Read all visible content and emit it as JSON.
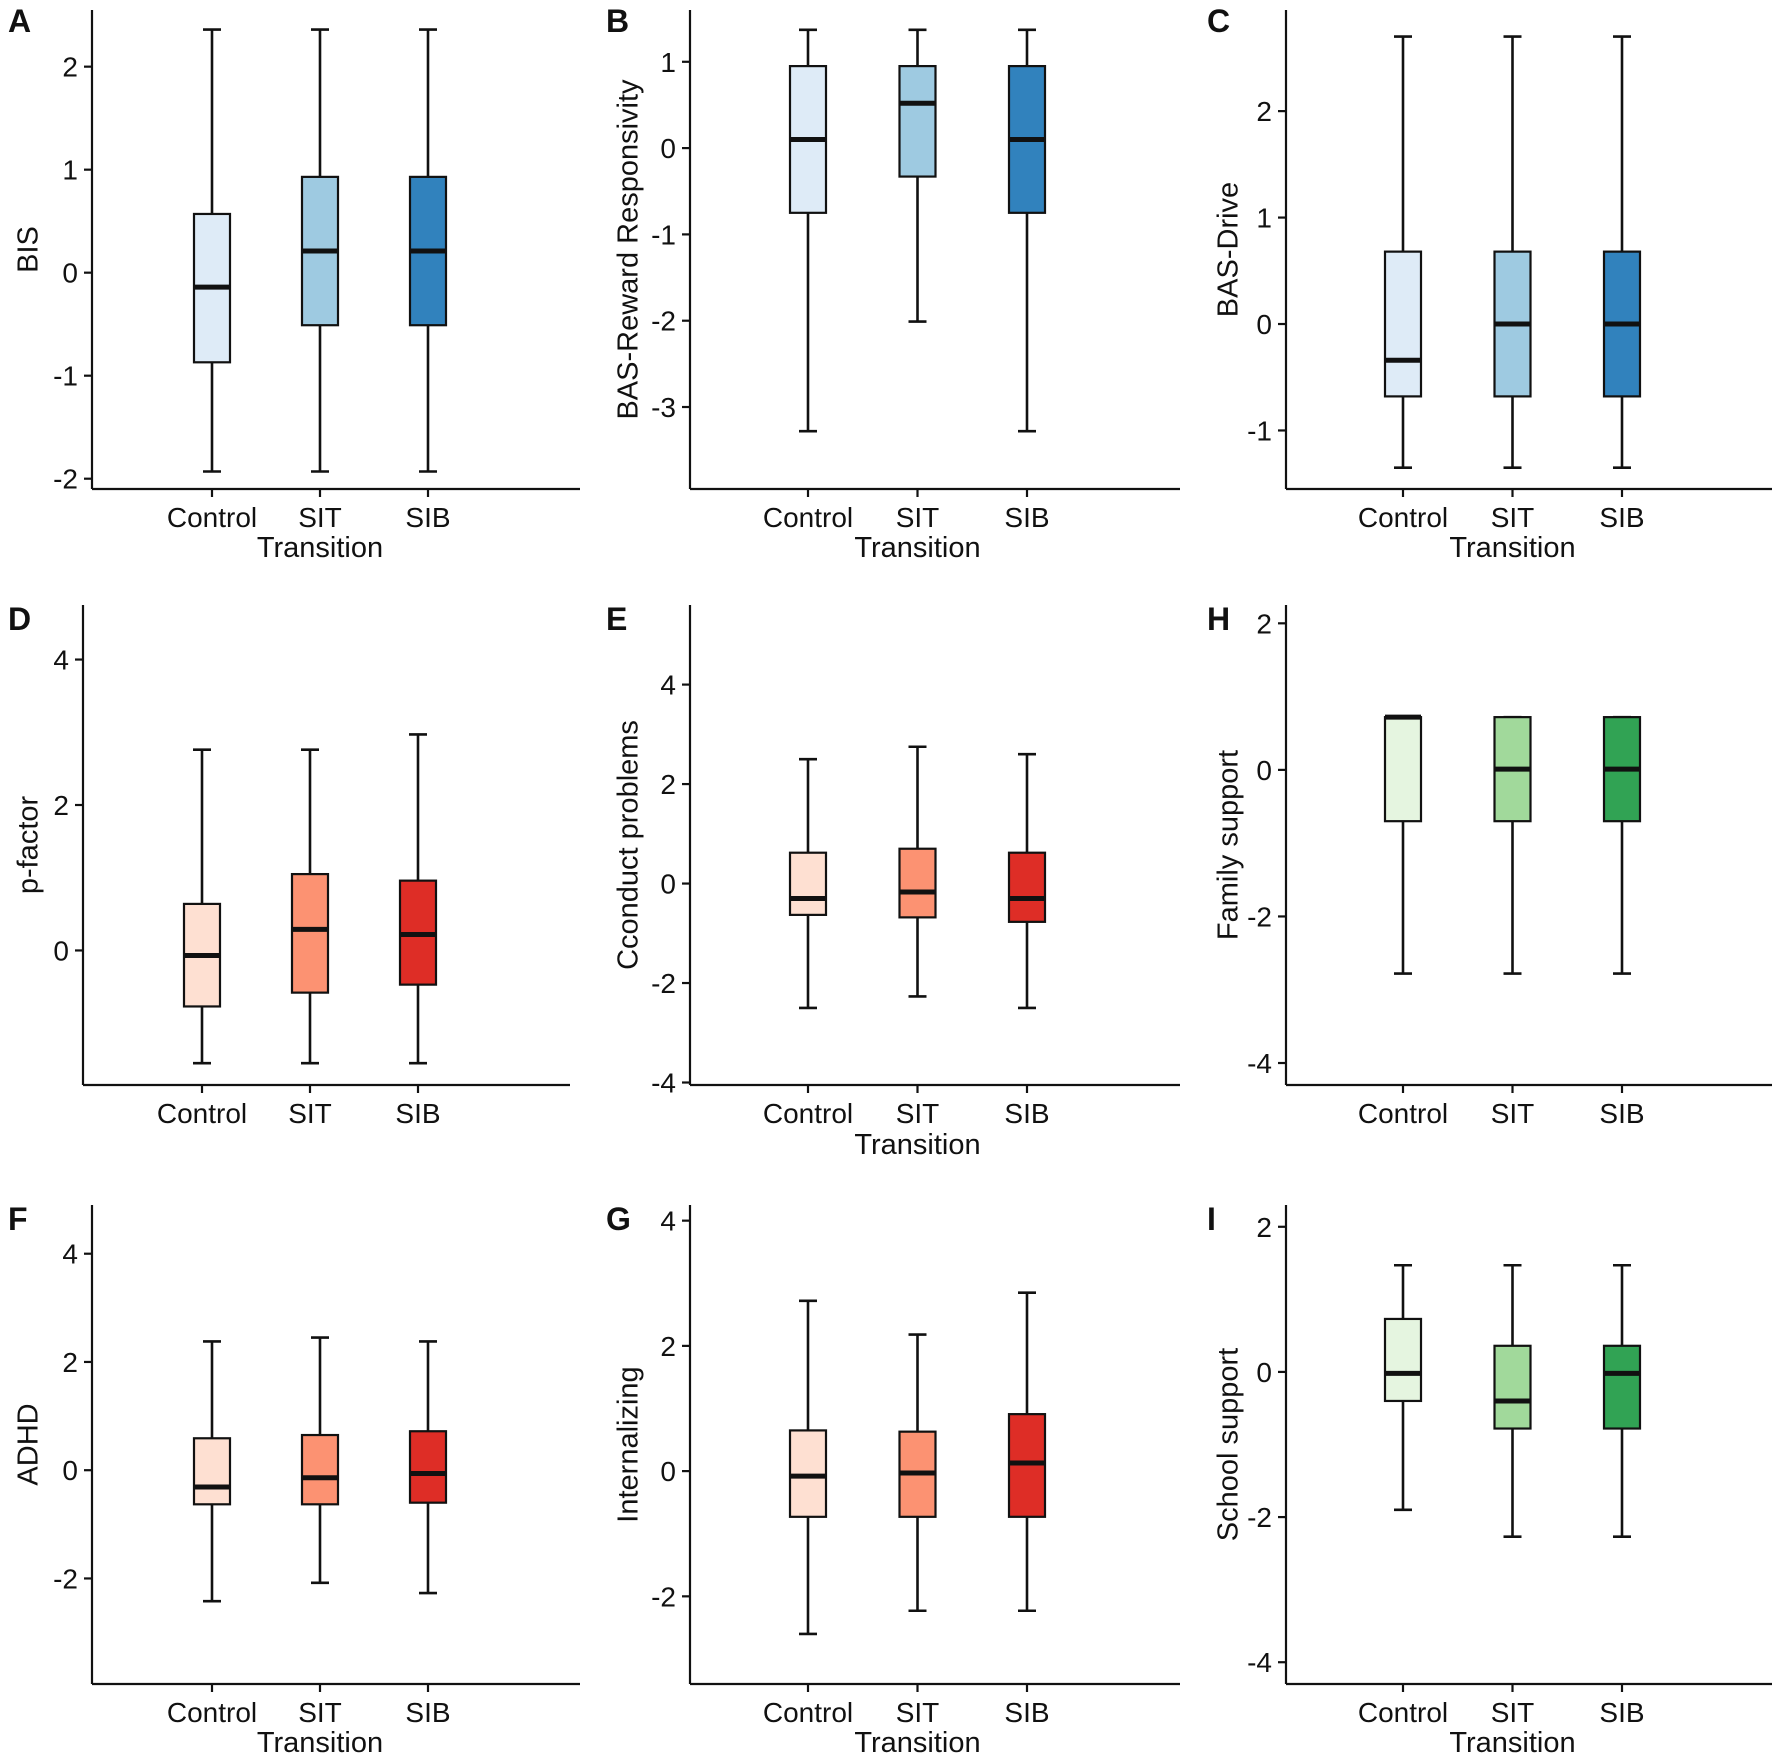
{
  "colors": {
    "blue": [
      "#deebf7",
      "#9ecae1",
      "#3182bd"
    ],
    "red": [
      "#fee0d2",
      "#fc9272",
      "#de2d26"
    ],
    "green": [
      "#e5f5e0",
      "#a1d99b",
      "#31a354"
    ]
  },
  "chart_data": [
    {
      "type": "box",
      "panel": "A",
      "ylabel": "BIS",
      "xlabel": "Transition",
      "ylim": [
        -2.1,
        2.55
      ],
      "yticks": [
        -2,
        -1,
        0,
        1,
        2
      ],
      "ytick_labels": [
        "-2",
        "-1",
        "0",
        "1",
        "2"
      ],
      "palette": "blue",
      "categories": [
        "Control",
        "SIT",
        "SIB"
      ],
      "boxes": [
        {
          "min": -1.93,
          "q1": -0.87,
          "median": -0.14,
          "q3": 0.57,
          "max": 2.36
        },
        {
          "min": -1.93,
          "q1": -0.51,
          "median": 0.21,
          "q3": 0.93,
          "max": 2.36
        },
        {
          "min": -1.93,
          "q1": -0.51,
          "median": 0.21,
          "q3": 0.93,
          "max": 2.36
        }
      ]
    },
    {
      "type": "box",
      "panel": "B",
      "ylabel": "BAS-Reward Responsivity",
      "xlabel": "Transition",
      "ylim": [
        -3.95,
        1.6
      ],
      "yticks": [
        -3,
        -2,
        -1,
        0,
        1
      ],
      "ytick_labels": [
        "-3",
        "-2",
        "-1",
        "0",
        "1"
      ],
      "palette": "blue",
      "categories": [
        "Control",
        "SIT",
        "SIB"
      ],
      "boxes": [
        {
          "min": -3.28,
          "q1": -0.75,
          "median": 0.1,
          "q3": 0.95,
          "max": 1.37
        },
        {
          "min": -2.01,
          "q1": -0.33,
          "median": 0.52,
          "q3": 0.95,
          "max": 1.37
        },
        {
          "min": -3.28,
          "q1": -0.75,
          "median": 0.1,
          "q3": 0.95,
          "max": 1.37
        }
      ]
    },
    {
      "type": "box",
      "panel": "C",
      "ylabel": "BAS-Drive",
      "xlabel": "Transition",
      "ylim": [
        -1.55,
        2.95
      ],
      "yticks": [
        -1,
        0,
        1,
        2
      ],
      "ytick_labels": [
        "-1",
        "0",
        "1",
        "2"
      ],
      "palette": "blue",
      "categories": [
        "Control",
        "SIT",
        "SIB"
      ],
      "boxes": [
        {
          "min": -1.35,
          "q1": -0.68,
          "median": -0.34,
          "q3": 0.68,
          "max": 2.7
        },
        {
          "min": -1.35,
          "q1": -0.68,
          "median": 0.0,
          "q3": 0.68,
          "max": 2.7
        },
        {
          "min": -1.35,
          "q1": -0.68,
          "median": 0.0,
          "q3": 0.68,
          "max": 2.7
        }
      ]
    },
    {
      "type": "box",
      "panel": "D",
      "ylabel": "p-factor",
      "xlabel": "",
      "ylim": [
        -1.85,
        4.75
      ],
      "yticks": [
        0,
        2,
        4
      ],
      "ytick_labels": [
        "0",
        "2",
        "4"
      ],
      "palette": "red",
      "categories": [
        "Control",
        "SIT",
        "SIB"
      ],
      "boxes": [
        {
          "min": -1.55,
          "q1": -0.77,
          "median": -0.07,
          "q3": 0.64,
          "max": 2.76
        },
        {
          "min": -1.55,
          "q1": -0.58,
          "median": 0.29,
          "q3": 1.05,
          "max": 2.76
        },
        {
          "min": -1.55,
          "q1": -0.47,
          "median": 0.22,
          "q3": 0.96,
          "max": 2.97
        }
      ]
    },
    {
      "type": "box",
      "panel": "E",
      "ylabel": "Cconduct problems",
      "xlabel": "Transition",
      "ylim": [
        -4.05,
        5.6
      ],
      "yticks": [
        -4,
        -2,
        0,
        2,
        4
      ],
      "ytick_labels": [
        "-4",
        "-2",
        "0",
        "2",
        "4"
      ],
      "palette": "red",
      "categories": [
        "Control",
        "SIT",
        "SIB"
      ],
      "boxes": [
        {
          "min": -2.5,
          "q1": -0.63,
          "median": -0.3,
          "q3": 0.62,
          "max": 2.5
        },
        {
          "min": -2.27,
          "q1": -0.68,
          "median": -0.17,
          "q3": 0.7,
          "max": 2.75
        },
        {
          "min": -2.5,
          "q1": -0.77,
          "median": -0.3,
          "q3": 0.62,
          "max": 2.6
        }
      ]
    },
    {
      "type": "box",
      "panel": "H",
      "ylabel": "Family support",
      "xlabel": "",
      "ylim": [
        -4.3,
        2.25
      ],
      "yticks": [
        -4,
        -2,
        0,
        2
      ],
      "ytick_labels": [
        "-4",
        "-2",
        "0",
        "2"
      ],
      "palette": "green",
      "categories": [
        "Control",
        "SIT",
        "SIB"
      ],
      "boxes": [
        {
          "min": -2.78,
          "q1": -0.7,
          "median": 0.72,
          "q3": 0.72,
          "max": 0.72
        },
        {
          "min": -2.78,
          "q1": -0.7,
          "median": 0.01,
          "q3": 0.72,
          "max": 0.72
        },
        {
          "min": -2.78,
          "q1": -0.7,
          "median": 0.01,
          "q3": 0.72,
          "max": 0.72
        }
      ]
    },
    {
      "type": "box",
      "panel": "F",
      "ylabel": "ADHD",
      "xlabel": "Transition",
      "ylim": [
        -3.95,
        4.9
      ],
      "yticks": [
        -2,
        0,
        2,
        4
      ],
      "ytick_labels": [
        "-2",
        "0",
        "2",
        "4"
      ],
      "palette": "red",
      "categories": [
        "Control",
        "SIT",
        "SIB"
      ],
      "boxes": [
        {
          "min": -2.42,
          "q1": -0.63,
          "median": -0.31,
          "q3": 0.59,
          "max": 2.38
        },
        {
          "min": -2.08,
          "q1": -0.63,
          "median": -0.14,
          "q3": 0.65,
          "max": 2.45
        },
        {
          "min": -2.27,
          "q1": -0.6,
          "median": -0.06,
          "q3": 0.72,
          "max": 2.38
        }
      ]
    },
    {
      "type": "box",
      "panel": "G",
      "ylabel": "Internalizing",
      "xlabel": "Transition",
      "ylim": [
        -3.4,
        4.25
      ],
      "yticks": [
        -2,
        0,
        2,
        4
      ],
      "ytick_labels": [
        "-2",
        "0",
        "2",
        "4"
      ],
      "palette": "red",
      "categories": [
        "Control",
        "SIT",
        "SIB"
      ],
      "boxes": [
        {
          "min": -2.6,
          "q1": -0.73,
          "median": -0.08,
          "q3": 0.65,
          "max": 2.72
        },
        {
          "min": -2.23,
          "q1": -0.73,
          "median": -0.03,
          "q3": 0.63,
          "max": 2.18
        },
        {
          "min": -2.23,
          "q1": -0.73,
          "median": 0.13,
          "q3": 0.91,
          "max": 2.85
        }
      ]
    },
    {
      "type": "box",
      "panel": "I",
      "ylabel": "School support",
      "xlabel": "Transition",
      "ylim": [
        -4.3,
        2.3
      ],
      "yticks": [
        -4,
        -2,
        0,
        2
      ],
      "ytick_labels": [
        "-4",
        "-2",
        "0",
        "2"
      ],
      "palette": "green",
      "categories": [
        "Control",
        "SIT",
        "SIB"
      ],
      "boxes": [
        {
          "min": -1.9,
          "q1": -0.4,
          "median": -0.02,
          "q3": 0.73,
          "max": 1.47
        },
        {
          "min": -2.27,
          "q1": -0.78,
          "median": -0.4,
          "q3": 0.36,
          "max": 1.47
        },
        {
          "min": -2.27,
          "q1": -0.78,
          "median": -0.02,
          "q3": 0.36,
          "max": 1.47
        }
      ]
    }
  ]
}
